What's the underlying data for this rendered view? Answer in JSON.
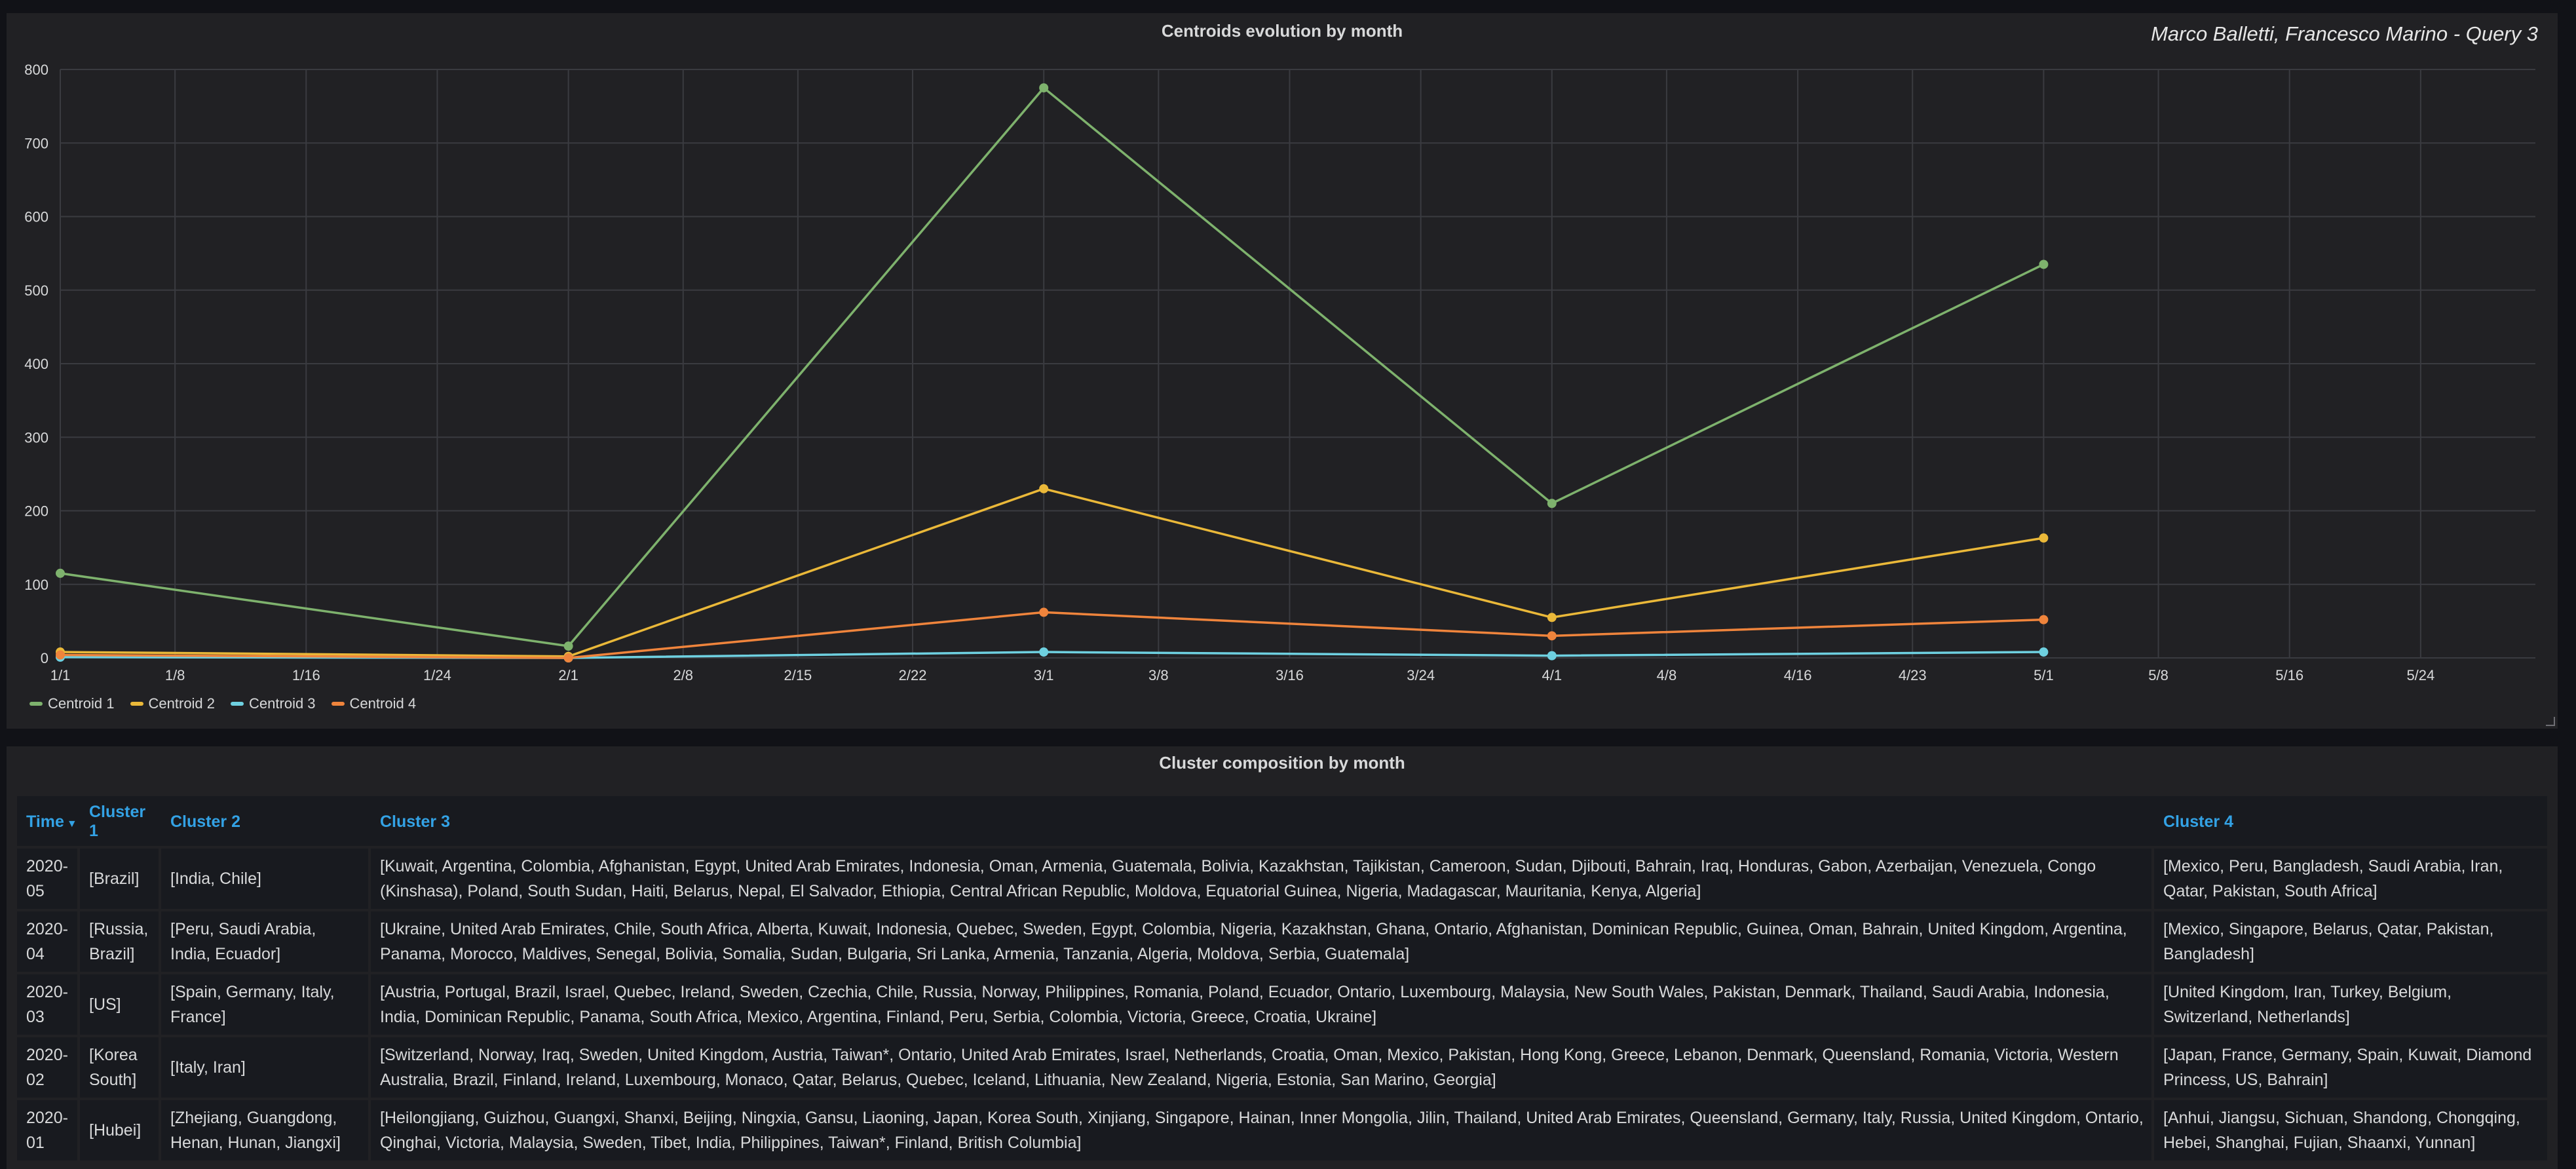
{
  "chart_panel": {
    "title": "Centroids evolution by month",
    "text_overlay": "Marco Balletti, Francesco Marino - Query 3"
  },
  "chart_data": {
    "type": "line",
    "title": "Centroids evolution by month",
    "x_ticks": [
      "1/1",
      "1/8",
      "1/16",
      "1/24",
      "2/1",
      "2/8",
      "2/15",
      "2/22",
      "3/1",
      "3/8",
      "3/16",
      "3/24",
      "4/1",
      "4/8",
      "4/16",
      "4/23",
      "5/1",
      "5/8",
      "5/16",
      "5/24"
    ],
    "y_ticks": [
      0,
      100,
      200,
      300,
      400,
      500,
      600,
      700,
      800
    ],
    "ylim": [
      0,
      800
    ],
    "xlim": [
      "2020-01-01",
      "2020-05-31"
    ],
    "x": [
      "2020-01-01",
      "2020-02-01",
      "2020-03-01",
      "2020-04-01",
      "2020-05-01"
    ],
    "series": [
      {
        "name": "Centroid 1",
        "color": "#7eb26d",
        "values": [
          115,
          16,
          775,
          210,
          535
        ]
      },
      {
        "name": "Centroid 2",
        "color": "#eab839",
        "values": [
          8,
          2,
          230,
          55,
          163
        ]
      },
      {
        "name": "Centroid 3",
        "color": "#6ed0e0",
        "values": [
          1,
          0,
          8,
          3,
          8
        ]
      },
      {
        "name": "Centroid 4",
        "color": "#ef843c",
        "values": [
          4,
          0,
          62,
          30,
          52
        ]
      }
    ],
    "grid": true,
    "legend": "bottom-left"
  },
  "table_panel": {
    "title": "Cluster composition by month",
    "columns": [
      "Time",
      "Cluster 1",
      "Cluster 2",
      "Cluster 3",
      "Cluster 4"
    ],
    "rows": [
      [
        "2020-05",
        "[Brazil]",
        "[India, Chile]",
        "[Kuwait, Argentina, Colombia, Afghanistan, Egypt, United Arab Emirates, Indonesia, Oman, Armenia, Guatemala, Bolivia, Kazakhstan, Tajikistan, Cameroon, Sudan, Djibouti, Bahrain, Iraq, Honduras, Gabon, Azerbaijan, Venezuela, Congo (Kinshasa), Poland, South Sudan, Haiti, Belarus, Nepal, El Salvador, Ethiopia, Central African Republic, Moldova, Equatorial Guinea, Nigeria, Madagascar, Mauritania, Kenya, Algeria]",
        "[Mexico, Peru, Bangladesh, Saudi Arabia, Iran, Qatar, Pakistan, South Africa]"
      ],
      [
        "2020-04",
        "[Russia, Brazil]",
        "[Peru, Saudi Arabia, India, Ecuador]",
        "[Ukraine, United Arab Emirates, Chile, South Africa, Alberta, Kuwait, Indonesia, Quebec, Sweden, Egypt, Colombia, Nigeria, Kazakhstan, Ghana, Ontario, Afghanistan, Dominican Republic, Guinea, Oman, Bahrain, United Kingdom, Argentina, Panama, Morocco, Maldives, Senegal, Bolivia, Somalia, Sudan, Bulgaria, Sri Lanka, Armenia, Tanzania, Algeria, Moldova, Serbia, Guatemala]",
        "[Mexico, Singapore, Belarus, Qatar, Pakistan, Bangladesh]"
      ],
      [
        "2020-03",
        "[US]",
        "[Spain, Germany, Italy, France]",
        "[Austria, Portugal, Brazil, Israel, Quebec, Ireland, Sweden, Czechia, Chile, Russia, Norway, Philippines, Romania, Poland, Ecuador, Ontario, Luxembourg, Malaysia, New South Wales, Pakistan, Denmark, Thailand, Saudi Arabia, Indonesia, India, Dominican Republic, Panama, South Africa, Mexico, Argentina, Finland, Peru, Serbia, Colombia, Victoria, Greece, Croatia, Ukraine]",
        "[United Kingdom, Iran, Turkey, Belgium, Switzerland, Netherlands]"
      ],
      [
        "2020-02",
        "[Korea South]",
        "[Italy, Iran]",
        "[Switzerland, Norway, Iraq, Sweden, United Kingdom, Austria, Taiwan*, Ontario, United Arab Emirates, Israel, Netherlands, Croatia, Oman, Mexico, Pakistan, Hong Kong, Greece, Lebanon, Denmark, Queensland, Romania, Victoria, Western Australia, Brazil, Finland, Ireland, Luxembourg, Monaco, Qatar, Belarus, Quebec, Iceland, Lithuania, New Zealand, Nigeria, Estonia, San Marino, Georgia]",
        "[Japan, France, Germany, Spain, Kuwait, Diamond Princess, US, Bahrain]"
      ],
      [
        "2020-01",
        "[Hubei]",
        "[Zhejiang, Guangdong, Henan, Hunan, Jiangxi]",
        "[Heilongjiang, Guizhou, Guangxi, Shanxi, Beijing, Ningxia, Gansu, Liaoning, Japan, Korea South, Xinjiang, Singapore, Hainan, Inner Mongolia, Jilin, Thailand, United Arab Emirates, Queensland, Germany, Italy, Russia, United Kingdom, Ontario, Qinghai, Victoria, Malaysia, Sweden, Tibet, India, Philippines, Taiwan*, Finland, British Columbia]",
        "[Anhui, Jiangsu, Sichuan, Shandong, Chongqing, Hebei, Shanghai, Fujian, Shaanxi, Yunnan]"
      ]
    ]
  },
  "icons": {
    "sort": "caret-down-icon",
    "resize": "resize-handle-icon"
  }
}
